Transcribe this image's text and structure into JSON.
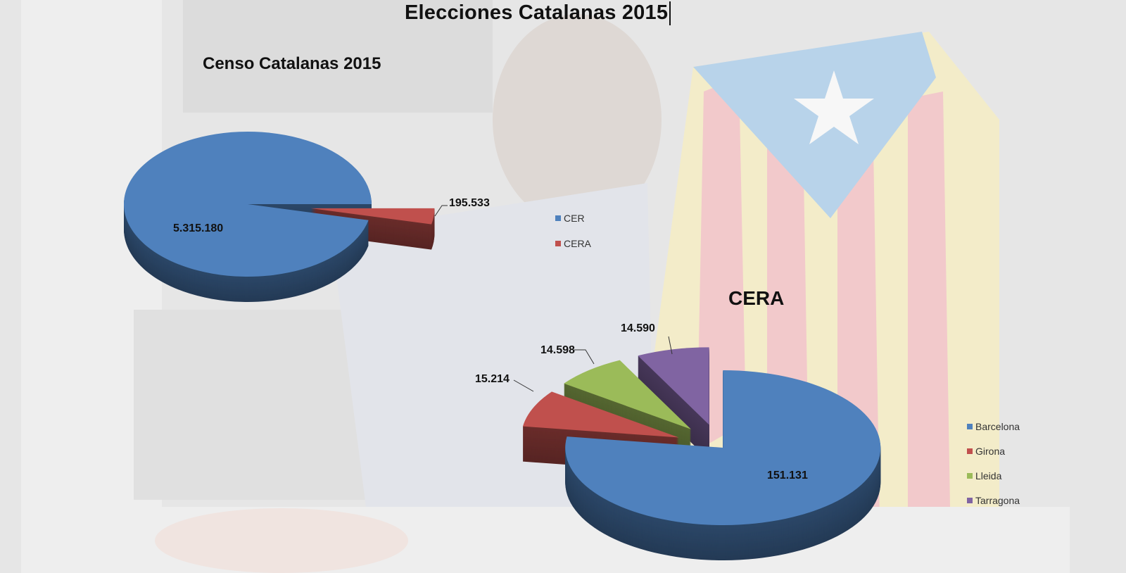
{
  "title": "Elecciones Catalanas 2015",
  "colors": {
    "blue": "#4f81bd",
    "red": "#c0504d",
    "green": "#9bbb59",
    "purple": "#8064a2"
  },
  "chart_data": [
    {
      "type": "pie",
      "style": "3d-exploded",
      "title": "Censo Catalanas 2015",
      "categories": [
        "CER",
        "CERA"
      ],
      "values": [
        5315180,
        195533
      ],
      "data_labels": [
        "5.315.180",
        "195.533"
      ],
      "legend": [
        "CER",
        "CERA"
      ],
      "legend_placement": "right",
      "colors": [
        "#4f81bd",
        "#c0504d"
      ]
    },
    {
      "type": "pie",
      "style": "3d-exploded",
      "title": "CERA",
      "categories": [
        "Barcelona",
        "Girona",
        "Lleida",
        "Tarragona"
      ],
      "values": [
        151131,
        15214,
        14598,
        14590
      ],
      "data_labels": [
        "151.131",
        "15.214",
        "14.598",
        "14.590"
      ],
      "legend": [
        "Barcelona",
        "Girona",
        "Lleida",
        "Tarragona"
      ],
      "legend_placement": "right",
      "colors": [
        "#4f81bd",
        "#c0504d",
        "#9bbb59",
        "#8064a2"
      ]
    }
  ]
}
